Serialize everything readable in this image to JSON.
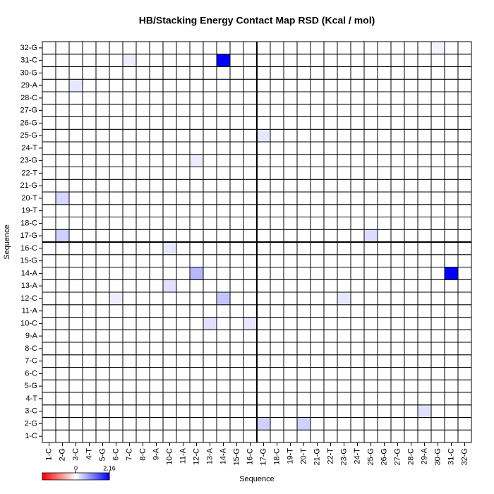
{
  "chart_data": {
    "type": "heatmap",
    "title": "HB/Stacking Energy Contact Map RSD (Kcal / mol)",
    "x_label": "Sequence",
    "y_label": "Sequence",
    "x_categories": [
      "1-C",
      "2-G",
      "3-C",
      "4-T",
      "5-G",
      "6-C",
      "7-C",
      "8-C",
      "9-A",
      "10-C",
      "11-A",
      "12-C",
      "13-A",
      "14-A",
      "15-G",
      "16-C",
      "17-G",
      "18-C",
      "19-T",
      "20-T",
      "21-G",
      "22-T",
      "23-G",
      "24-T",
      "25-G",
      "26-G",
      "27-G",
      "28-C",
      "29-A",
      "30-G",
      "31-C",
      "32-G"
    ],
    "y_categories": [
      "1-C",
      "2-G",
      "3-C",
      "4-T",
      "5-G",
      "6-C",
      "7-C",
      "8-C",
      "9-A",
      "10-C",
      "11-A",
      "12-C",
      "13-A",
      "14-A",
      "15-G",
      "16-C",
      "17-G",
      "18-C",
      "19-T",
      "20-T",
      "21-G",
      "22-T",
      "23-G",
      "24-T",
      "25-G",
      "26-G",
      "27-G",
      "28-C",
      "29-A",
      "30-G",
      "31-C",
      "32-G"
    ],
    "z": [
      [
        0,
        0,
        0,
        0,
        0,
        0,
        0,
        0,
        0,
        0,
        0,
        0,
        0,
        0,
        0,
        0,
        0,
        0,
        0,
        0,
        0,
        0,
        0,
        0,
        0,
        0,
        0,
        0,
        0,
        0,
        0,
        0
      ],
      [
        0,
        0,
        0,
        0,
        0,
        0,
        0,
        0,
        0,
        0,
        0,
        0,
        0,
        0,
        0,
        0,
        0.4,
        0,
        0,
        0.4,
        0,
        0,
        0,
        0,
        0,
        0,
        0,
        0,
        0,
        0,
        0,
        0
      ],
      [
        0,
        0,
        0,
        0,
        0,
        0,
        0,
        0,
        0,
        0,
        0,
        0,
        0,
        0,
        0,
        0,
        0,
        0,
        0,
        0,
        0,
        0,
        0,
        0,
        0,
        0,
        0,
        0,
        0.25,
        0,
        0,
        0
      ],
      [
        0,
        0,
        0,
        0,
        0,
        0,
        0,
        0,
        0,
        0,
        0,
        0,
        0,
        0,
        0,
        0,
        0,
        0,
        0,
        0,
        0,
        0,
        0,
        0,
        0,
        0,
        0,
        0,
        0,
        0,
        0,
        0
      ],
      [
        0,
        0,
        0,
        0,
        0,
        0,
        0,
        0,
        0,
        0,
        0,
        0,
        0,
        0,
        0,
        0,
        0,
        0,
        0,
        0,
        0,
        0,
        0,
        0,
        0,
        0,
        0,
        0,
        0,
        0,
        0,
        0
      ],
      [
        0,
        0,
        0,
        0,
        0,
        0,
        0,
        0,
        0,
        0,
        0,
        0,
        0,
        0,
        0,
        0,
        0,
        0,
        0,
        0,
        0,
        0,
        0,
        0,
        0,
        0,
        0,
        0,
        0,
        0,
        0,
        0
      ],
      [
        0,
        0,
        0,
        0,
        0,
        0,
        0,
        0,
        0,
        0,
        0,
        0,
        0,
        0,
        0,
        0,
        0,
        0,
        0,
        0,
        0,
        0,
        0,
        0,
        0,
        0,
        0,
        0,
        0,
        0,
        0,
        0
      ],
      [
        0,
        0,
        0,
        0,
        0,
        0,
        0,
        0,
        0,
        0,
        0,
        0,
        0,
        0,
        0,
        0,
        0,
        0,
        0,
        0,
        0,
        0,
        0,
        0,
        0,
        0,
        0,
        0,
        0,
        0,
        0,
        0
      ],
      [
        0,
        0,
        0,
        0,
        0,
        0,
        0,
        0,
        0,
        0,
        0,
        0,
        0,
        0,
        0,
        0,
        0,
        0,
        0,
        0,
        0,
        0,
        0,
        0,
        0,
        0,
        0,
        0,
        0,
        0,
        0,
        0
      ],
      [
        0,
        0,
        0,
        0,
        0,
        0,
        0,
        0,
        0,
        0,
        0,
        0,
        0.25,
        0,
        0,
        0.2,
        0,
        0,
        0,
        0,
        0,
        0,
        0,
        0,
        0,
        0,
        0,
        0,
        0,
        0,
        0,
        0
      ],
      [
        0,
        0,
        0,
        0,
        0,
        0,
        0,
        0,
        0,
        0,
        0,
        0,
        0,
        0,
        0,
        0,
        0,
        0,
        0,
        0,
        0,
        0,
        0,
        0,
        0,
        0,
        0,
        0,
        0,
        0,
        0,
        0
      ],
      [
        0,
        0,
        0,
        0,
        0,
        0.15,
        0,
        0,
        0,
        0,
        0,
        0,
        0,
        0.5,
        0,
        0,
        0,
        0,
        0,
        0,
        0,
        0,
        0.2,
        0,
        0,
        0,
        0,
        0,
        0,
        0,
        0,
        0
      ],
      [
        0,
        0,
        0,
        0,
        0,
        0,
        0,
        0,
        0,
        0.25,
        0,
        0,
        0,
        0,
        0,
        0,
        0,
        0,
        0,
        0,
        0,
        0,
        0,
        0,
        0,
        0,
        0,
        0,
        0,
        0,
        0,
        0
      ],
      [
        0,
        0,
        0,
        0,
        0,
        0,
        0,
        0,
        0,
        0,
        0,
        0.6,
        0,
        0,
        0,
        0,
        0,
        0,
        0,
        0,
        0,
        0,
        0,
        0,
        0,
        0,
        0,
        0,
        0,
        0,
        2.16,
        0
      ],
      [
        0,
        0,
        0,
        0,
        0,
        0,
        0,
        0,
        0,
        0,
        0,
        0,
        0,
        0,
        0,
        0,
        0,
        0,
        0,
        0,
        0,
        0,
        0,
        0,
        0,
        0,
        0,
        0,
        0,
        0,
        0,
        0
      ],
      [
        0,
        0,
        0,
        0,
        0,
        0,
        0,
        0,
        0,
        0.2,
        0,
        0,
        0,
        0,
        0,
        0,
        0,
        0,
        0,
        0,
        0,
        0,
        0,
        0,
        0,
        0,
        0,
        0,
        0,
        0,
        0,
        0
      ],
      [
        0,
        0.4,
        0,
        0,
        0,
        0,
        0,
        0,
        0,
        0,
        0,
        0,
        0,
        0,
        0,
        0,
        0,
        0,
        0,
        0,
        0,
        0,
        0,
        0,
        0.3,
        0,
        0,
        0,
        0,
        0,
        0,
        0
      ],
      [
        0,
        0,
        0,
        0,
        0,
        0,
        0,
        0,
        0,
        0,
        0,
        0,
        0,
        0,
        0,
        0,
        0,
        0,
        0,
        0,
        0,
        0,
        0,
        0,
        0,
        0,
        0,
        0,
        0,
        0,
        0,
        0
      ],
      [
        0,
        0,
        0,
        0,
        0,
        0,
        0,
        0,
        0,
        0,
        0,
        0,
        0,
        0,
        0,
        0,
        0,
        0,
        0,
        0,
        0,
        0,
        0,
        0,
        0,
        0,
        0,
        0,
        0,
        0,
        0,
        0
      ],
      [
        0,
        0.35,
        0,
        0,
        0,
        0,
        0,
        0,
        0,
        0,
        0,
        0,
        0,
        0,
        0,
        0,
        0,
        0,
        0,
        0,
        0,
        0,
        0,
        0,
        0,
        0,
        0,
        0,
        0,
        0,
        0,
        0
      ],
      [
        0,
        0,
        0,
        0,
        0,
        0,
        0,
        0,
        0,
        0,
        0,
        0,
        0,
        0,
        0,
        0,
        0,
        0,
        0,
        0,
        0,
        0,
        0,
        0,
        0,
        0,
        0,
        0,
        0,
        0,
        0,
        0
      ],
      [
        0,
        0,
        0,
        0,
        0,
        0,
        0,
        0,
        0,
        0,
        0,
        0,
        0,
        0,
        0,
        0,
        0,
        0,
        0,
        0,
        0,
        0,
        0,
        0,
        0,
        0,
        0,
        0,
        0,
        0,
        0,
        0
      ],
      [
        0,
        0,
        0,
        0,
        0,
        0,
        0,
        0,
        0,
        0,
        0,
        0.15,
        0,
        0,
        0,
        0,
        0,
        0,
        0,
        0,
        0,
        0,
        0,
        0,
        0,
        0,
        0,
        0,
        0,
        0,
        0,
        0
      ],
      [
        0,
        0,
        0,
        0,
        0,
        0,
        0,
        0,
        0,
        0,
        0,
        0,
        0,
        0,
        0,
        0,
        0,
        0,
        0,
        0,
        0,
        0,
        0,
        0,
        0,
        0,
        0,
        0,
        0,
        0,
        0,
        0
      ],
      [
        0,
        0,
        0,
        0,
        0,
        0,
        0,
        0,
        0,
        0,
        0,
        0,
        0,
        0,
        0,
        0,
        0.2,
        0,
        0,
        0,
        0,
        0,
        0,
        0,
        0,
        0,
        0,
        0,
        0,
        0,
        0,
        0
      ],
      [
        0,
        0,
        0,
        0,
        0,
        0,
        0,
        0,
        0,
        0,
        0,
        0,
        0,
        0,
        0,
        0,
        0,
        0,
        0,
        0,
        0,
        0,
        0,
        0,
        0,
        0,
        0,
        0,
        0,
        0,
        0,
        0
      ],
      [
        0,
        0,
        0,
        0,
        0,
        0,
        0,
        0,
        0,
        0,
        0,
        0,
        0,
        0,
        0,
        0,
        0,
        0,
        0,
        0,
        0,
        0,
        0,
        0,
        0,
        0,
        0,
        0,
        0,
        0,
        0,
        0
      ],
      [
        0,
        0,
        0,
        0,
        0,
        0,
        0,
        0,
        0,
        0,
        0,
        0,
        0,
        0,
        0,
        0,
        0,
        0,
        0,
        0,
        0,
        0,
        0,
        0,
        0,
        0,
        0,
        0,
        0,
        0,
        0,
        0
      ],
      [
        0,
        0,
        0.2,
        0,
        0,
        0,
        0,
        0,
        0,
        0,
        0,
        0,
        0,
        0,
        0,
        0,
        0,
        0,
        0,
        0,
        0,
        0,
        0,
        0,
        0,
        0,
        0,
        0,
        0,
        0,
        0,
        0
      ],
      [
        0,
        0,
        0,
        0,
        0,
        0,
        0,
        0,
        0,
        0,
        0,
        0,
        0,
        0,
        0,
        0,
        0,
        0,
        0,
        0,
        0,
        0,
        0,
        0,
        0,
        0,
        0,
        0,
        0,
        0,
        0,
        0
      ],
      [
        0,
        0,
        0,
        0,
        0,
        0,
        0.15,
        0,
        0,
        0,
        0,
        0,
        0,
        2.16,
        0,
        0,
        0,
        0,
        0,
        0,
        0,
        0,
        0,
        0,
        0,
        0,
        0,
        0,
        0,
        0,
        0,
        0
      ],
      [
        0,
        0,
        0,
        0,
        0,
        0,
        0,
        0,
        0,
        0,
        0,
        0,
        0,
        0,
        0,
        0,
        0,
        0,
        0,
        0,
        0,
        0,
        0,
        0,
        0,
        0,
        0,
        0,
        0,
        0.1,
        0,
        0
      ]
    ],
    "colorbar_lim": [
      -2.16,
      2.16
    ],
    "colorbar_ticks": [
      0,
      2.16
    ],
    "colors": {
      "low": "#ff0000",
      "mid": "#ffffff",
      "high": "#0000ff"
    }
  }
}
